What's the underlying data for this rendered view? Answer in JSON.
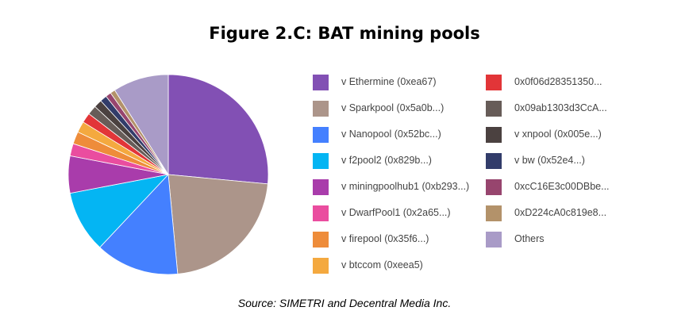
{
  "chart_data": {
    "type": "pie",
    "title": "Figure 2.C: BAT mining pools",
    "source": "Source: SIMETRI and Decentral Media Inc.",
    "legend": "right",
    "slices": [
      {
        "label": "v Ethermine (0xea67)",
        "value": 26.5,
        "color": "#8250b4"
      },
      {
        "label": "v Sparkpool (0x5a0b...)",
        "value": 22.0,
        "color": "#ac958a"
      },
      {
        "label": "v Nanopool (0x52bc...)",
        "value": 13.5,
        "color": "#4480ff"
      },
      {
        "label": "v f2pool2 (0x829b...)",
        "value": 10.0,
        "color": "#04b5f3"
      },
      {
        "label": "v miningpoolhub1 (0xb293...)",
        "value": 6.0,
        "color": "#a93cab"
      },
      {
        "label": "v DwarfPool1 (0x2a65...)",
        "value": 2.0,
        "color": "#ea4d9f"
      },
      {
        "label": "v firepool (0x35f6...)",
        "value": 2.0,
        "color": "#ee8c3a"
      },
      {
        "label": "v btccom (0xeea5)",
        "value": 1.8,
        "color": "#f4a93f"
      },
      {
        "label": "0x0f06d28351350...",
        "value": 1.6,
        "color": "#e23538"
      },
      {
        "label": "0x09ab1303d3CcA...",
        "value": 1.5,
        "color": "#675c58"
      },
      {
        "label": "v xnpool (0x005e...)",
        "value": 1.3,
        "color": "#4b4140"
      },
      {
        "label": "v bw (0x52e4...)",
        "value": 1.1,
        "color": "#323c6a"
      },
      {
        "label": "0xcC16E3c00DBbe...",
        "value": 0.9,
        "color": "#97456e"
      },
      {
        "label": "0xD224cA0c819e8...",
        "value": 0.8,
        "color": "#b3926a"
      },
      {
        "label": "Others",
        "value": 9.0,
        "color": "#a99bc7"
      }
    ]
  }
}
